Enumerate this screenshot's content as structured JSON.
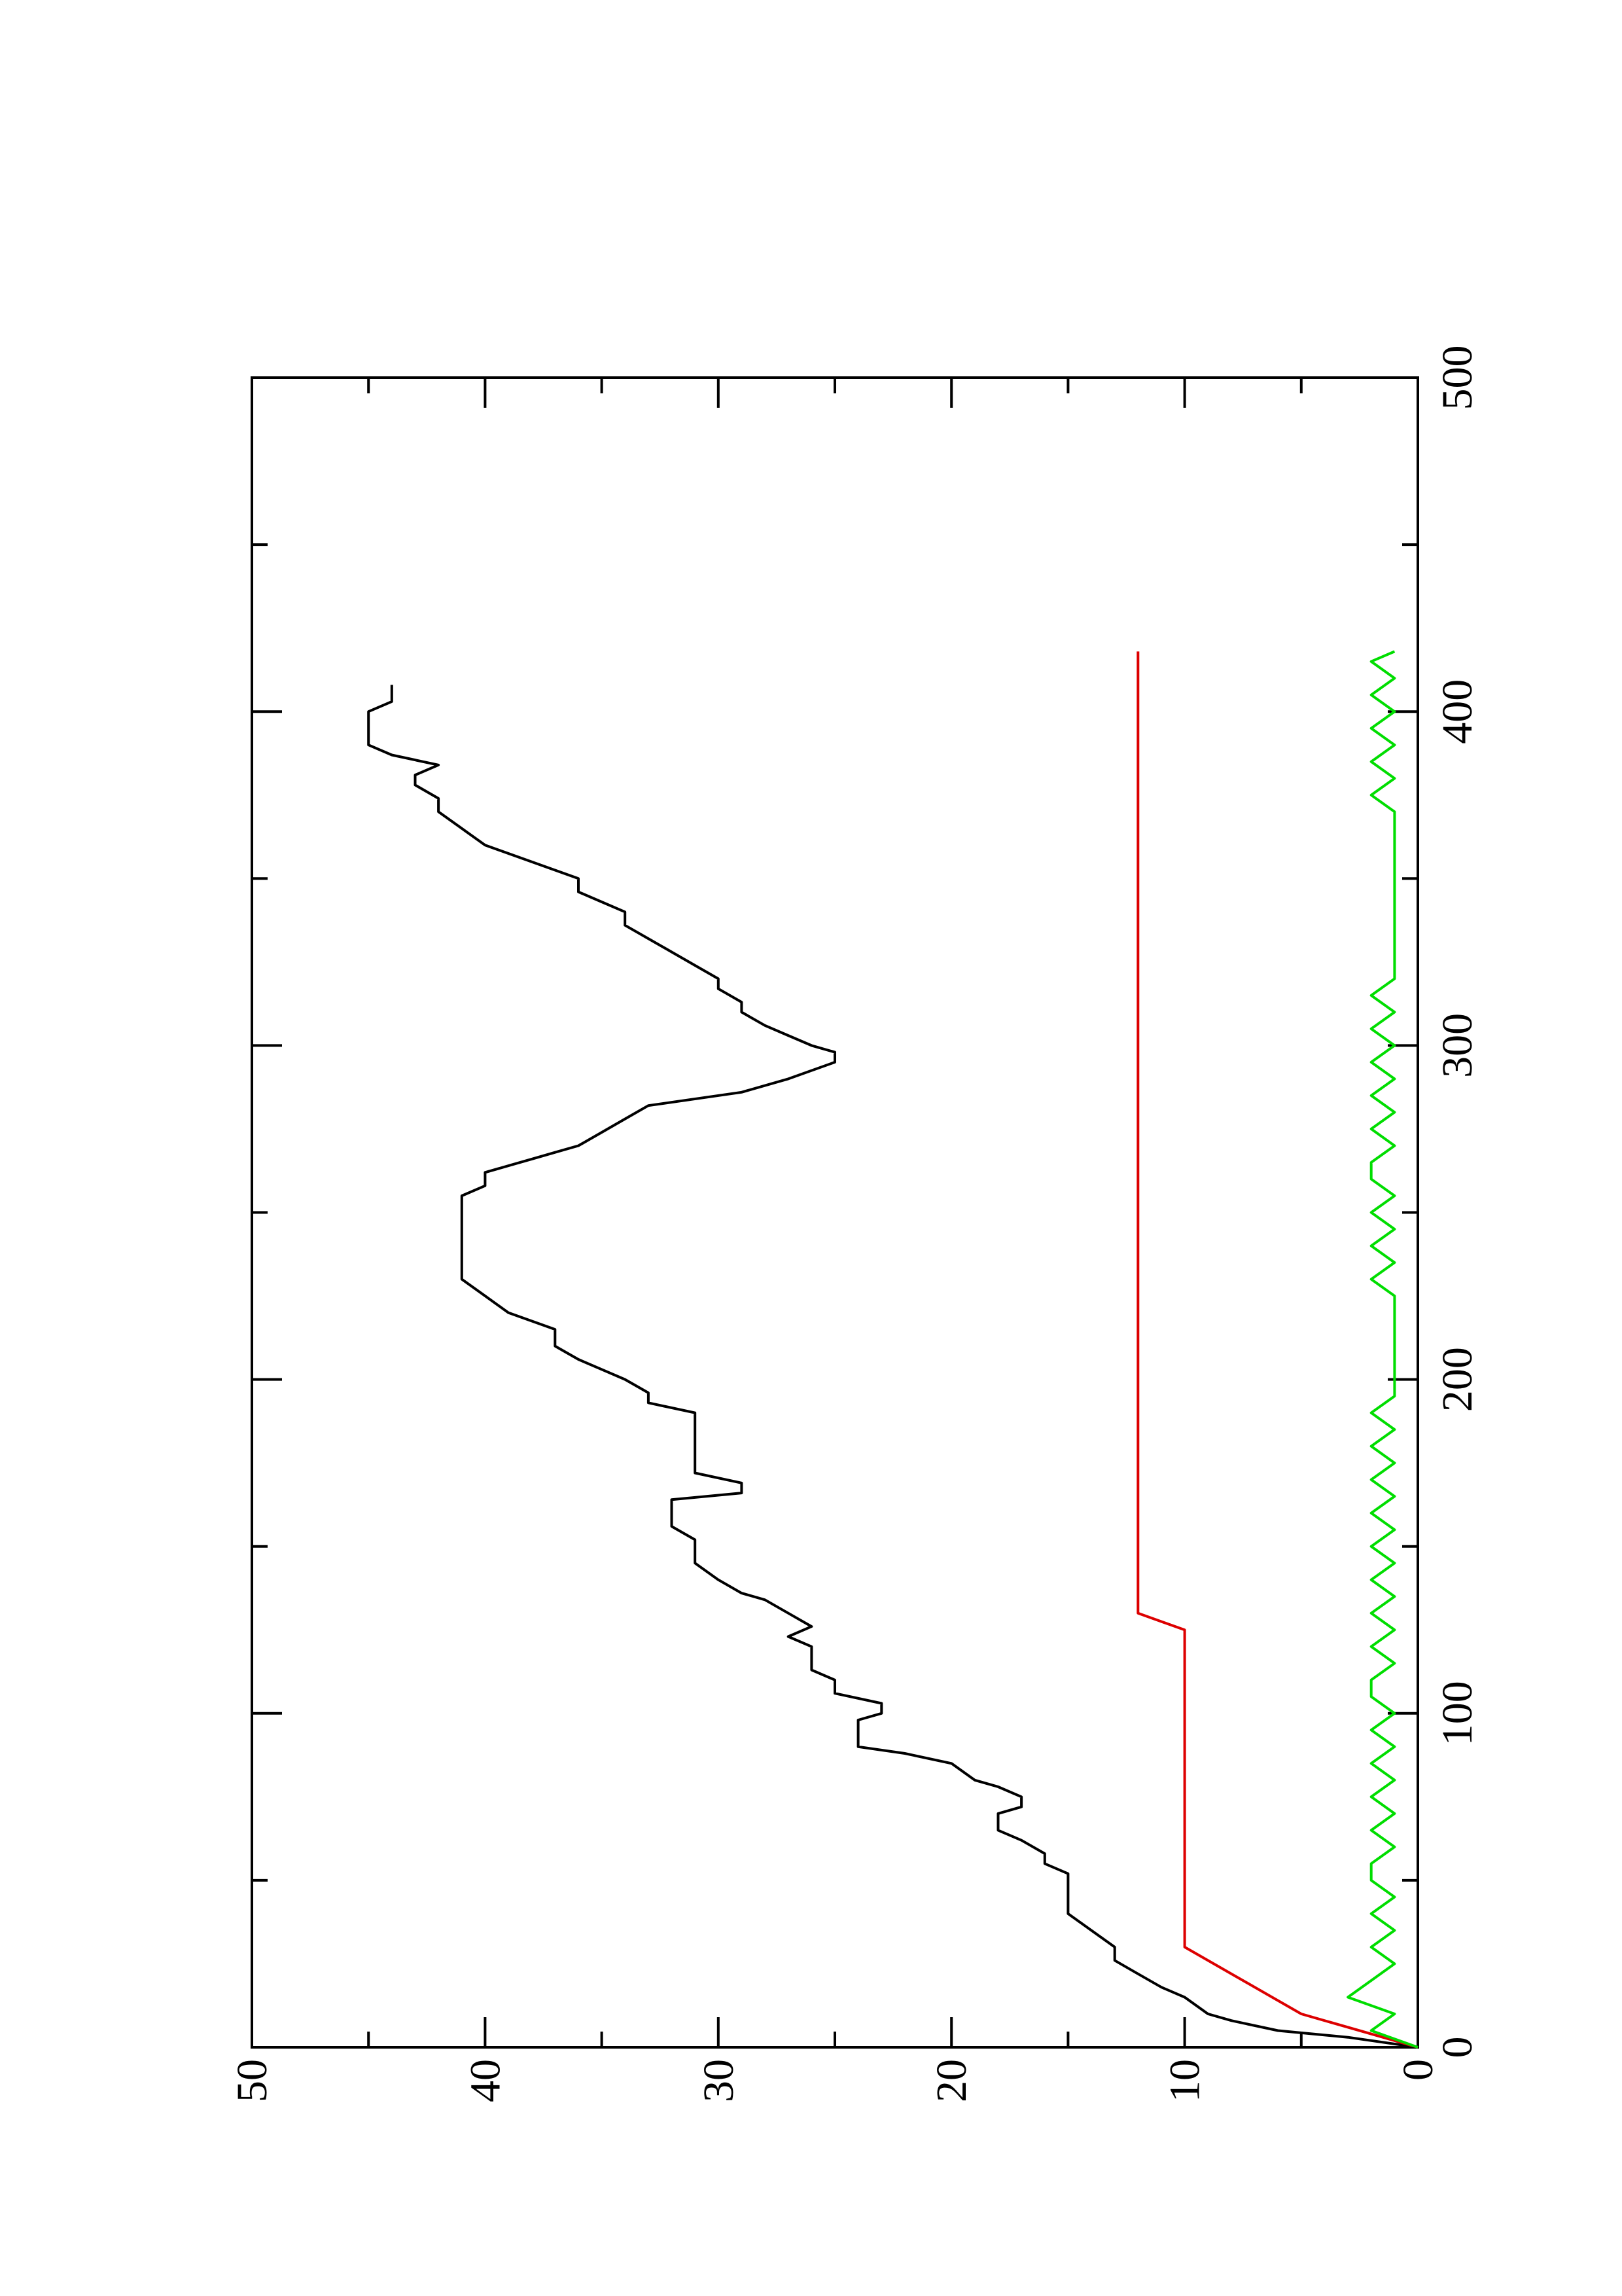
{
  "chart_data": {
    "type": "line",
    "orientation": "rotated-90-ccw",
    "title": "",
    "xlabel": "",
    "ylabel": "",
    "xlim": [
      0,
      500
    ],
    "ylim": [
      0,
      50
    ],
    "x_ticks": [
      "0",
      "100",
      "200",
      "300",
      "400",
      "500"
    ],
    "y_ticks": [
      "0",
      "10",
      "20",
      "30",
      "40",
      "50"
    ],
    "grid": false,
    "legend": "none",
    "series": [
      {
        "color": "#000000",
        "points": [
          [
            0,
            0
          ],
          [
            3,
            3
          ],
          [
            5,
            6
          ],
          [
            8,
            8
          ],
          [
            10,
            9
          ],
          [
            15,
            10
          ],
          [
            18,
            11
          ],
          [
            22,
            12
          ],
          [
            26,
            13
          ],
          [
            30,
            13
          ],
          [
            35,
            14
          ],
          [
            40,
            15
          ],
          [
            44,
            15
          ],
          [
            48,
            15
          ],
          [
            52,
            15
          ],
          [
            55,
            16
          ],
          [
            58,
            16
          ],
          [
            62,
            17
          ],
          [
            65,
            18
          ],
          [
            68,
            18
          ],
          [
            70,
            18
          ],
          [
            72,
            17
          ],
          [
            75,
            17
          ],
          [
            78,
            18
          ],
          [
            80,
            19
          ],
          [
            85,
            20
          ],
          [
            88,
            22
          ],
          [
            90,
            24
          ],
          [
            95,
            24
          ],
          [
            98,
            24
          ],
          [
            100,
            23
          ],
          [
            103,
            23
          ],
          [
            106,
            25
          ],
          [
            110,
            25
          ],
          [
            113,
            26
          ],
          [
            116,
            26
          ],
          [
            120,
            26
          ],
          [
            123,
            27
          ],
          [
            126,
            26
          ],
          [
            130,
            27
          ],
          [
            134,
            28
          ],
          [
            136,
            29
          ],
          [
            140,
            30
          ],
          [
            145,
            31
          ],
          [
            148,
            31
          ],
          [
            152,
            31
          ],
          [
            156,
            32
          ],
          [
            160,
            32
          ],
          [
            164,
            32
          ],
          [
            166,
            29
          ],
          [
            169,
            29
          ],
          [
            172,
            31
          ],
          [
            176,
            31
          ],
          [
            180,
            31
          ],
          [
            185,
            31
          ],
          [
            190,
            31
          ],
          [
            193,
            33
          ],
          [
            196,
            33
          ],
          [
            200,
            34
          ],
          [
            203,
            35
          ],
          [
            206,
            36
          ],
          [
            210,
            37
          ],
          [
            215,
            37
          ],
          [
            220,
            39
          ],
          [
            225,
            40
          ],
          [
            230,
            41
          ],
          [
            235,
            41
          ],
          [
            240,
            41
          ],
          [
            245,
            41
          ],
          [
            250,
            41
          ],
          [
            255,
            41
          ],
          [
            258,
            40
          ],
          [
            262,
            40
          ],
          [
            266,
            38
          ],
          [
            268,
            37
          ],
          [
            270,
            36
          ],
          [
            274,
            35
          ],
          [
            278,
            34
          ],
          [
            282,
            33
          ],
          [
            286,
            29
          ],
          [
            290,
            27
          ],
          [
            295,
            25
          ],
          [
            298,
            25
          ],
          [
            300,
            26
          ],
          [
            303,
            27
          ],
          [
            306,
            28
          ],
          [
            310,
            29
          ],
          [
            313,
            29
          ],
          [
            317,
            30
          ],
          [
            320,
            30
          ],
          [
            324,
            31
          ],
          [
            328,
            32
          ],
          [
            332,
            33
          ],
          [
            336,
            34
          ],
          [
            340,
            34
          ],
          [
            343,
            35
          ],
          [
            346,
            36
          ],
          [
            350,
            36
          ],
          [
            355,
            38
          ],
          [
            360,
            40
          ],
          [
            365,
            41
          ],
          [
            370,
            42
          ],
          [
            374,
            42
          ],
          [
            378,
            43
          ],
          [
            381,
            43
          ],
          [
            384,
            42
          ],
          [
            387,
            44
          ],
          [
            390,
            45
          ],
          [
            393,
            45
          ],
          [
            396,
            45
          ],
          [
            400,
            45
          ],
          [
            403,
            44
          ],
          [
            406,
            44
          ],
          [
            408,
            44
          ]
        ]
      },
      {
        "color": "#dd0000",
        "points": [
          [
            0,
            0
          ],
          [
            10,
            5
          ],
          [
            10,
            5
          ],
          [
            30,
            10
          ],
          [
            30,
            10
          ],
          [
            35,
            10
          ],
          [
            48,
            10
          ],
          [
            60,
            10
          ],
          [
            60,
            10
          ],
          [
            70,
            10
          ],
          [
            70,
            10
          ],
          [
            100,
            10
          ],
          [
            100,
            10
          ],
          [
            115,
            10
          ],
          [
            118,
            10
          ],
          [
            123,
            10
          ],
          [
            125,
            10
          ],
          [
            130,
            12
          ],
          [
            135,
            12
          ],
          [
            140,
            12
          ],
          [
            145,
            12
          ],
          [
            150,
            12
          ],
          [
            155,
            12
          ],
          [
            160,
            12
          ],
          [
            165,
            12
          ],
          [
            170,
            12
          ],
          [
            175,
            12
          ],
          [
            180,
            12
          ],
          [
            185,
            12
          ],
          [
            190,
            12
          ],
          [
            195,
            12
          ],
          [
            200,
            12
          ],
          [
            205,
            12
          ],
          [
            210,
            12
          ],
          [
            215,
            12
          ],
          [
            220,
            12
          ],
          [
            225,
            12
          ],
          [
            230,
            12
          ],
          [
            235,
            12
          ],
          [
            240,
            12
          ],
          [
            245,
            12
          ],
          [
            250,
            12
          ],
          [
            255,
            12
          ],
          [
            260,
            12
          ],
          [
            265,
            12
          ],
          [
            270,
            12
          ],
          [
            275,
            12
          ],
          [
            280,
            12
          ],
          [
            285,
            12
          ],
          [
            290,
            12
          ],
          [
            295,
            12
          ],
          [
            300,
            12
          ],
          [
            305,
            12
          ],
          [
            310,
            12
          ],
          [
            315,
            12
          ],
          [
            320,
            12
          ],
          [
            325,
            12
          ],
          [
            330,
            12
          ],
          [
            335,
            12
          ],
          [
            340,
            12
          ],
          [
            345,
            12
          ],
          [
            350,
            12
          ],
          [
            355,
            12
          ],
          [
            360,
            12
          ],
          [
            365,
            12
          ],
          [
            370,
            12
          ],
          [
            375,
            12
          ],
          [
            380,
            12
          ],
          [
            385,
            12
          ],
          [
            390,
            12
          ],
          [
            395,
            12
          ],
          [
            400,
            12
          ],
          [
            405,
            12
          ],
          [
            410,
            12
          ],
          [
            415,
            12
          ],
          [
            418,
            12
          ]
        ]
      },
      {
        "color": "#00dd00",
        "points": [
          [
            0,
            0
          ],
          [
            5,
            2
          ],
          [
            10,
            1
          ],
          [
            15,
            3
          ],
          [
            20,
            2
          ],
          [
            25,
            1
          ],
          [
            30,
            2
          ],
          [
            35,
            1
          ],
          [
            40,
            2
          ],
          [
            45,
            1
          ],
          [
            50,
            2
          ],
          [
            55,
            2
          ],
          [
            60,
            1
          ],
          [
            65,
            2
          ],
          [
            70,
            1
          ],
          [
            75,
            2
          ],
          [
            80,
            1
          ],
          [
            85,
            2
          ],
          [
            90,
            1
          ],
          [
            95,
            2
          ],
          [
            100,
            1
          ],
          [
            105,
            2
          ],
          [
            110,
            2
          ],
          [
            115,
            1
          ],
          [
            120,
            2
          ],
          [
            125,
            1
          ],
          [
            130,
            2
          ],
          [
            135,
            1
          ],
          [
            140,
            2
          ],
          [
            145,
            1
          ],
          [
            150,
            2
          ],
          [
            155,
            1
          ],
          [
            160,
            2
          ],
          [
            165,
            1
          ],
          [
            170,
            2
          ],
          [
            175,
            1
          ],
          [
            180,
            2
          ],
          [
            185,
            1
          ],
          [
            190,
            2
          ],
          [
            195,
            1
          ],
          [
            200,
            1
          ],
          [
            205,
            1
          ],
          [
            210,
            1
          ],
          [
            215,
            1
          ],
          [
            220,
            1
          ],
          [
            225,
            1
          ],
          [
            230,
            2
          ],
          [
            235,
            1
          ],
          [
            240,
            2
          ],
          [
            245,
            1
          ],
          [
            250,
            2
          ],
          [
            255,
            1
          ],
          [
            260,
            2
          ],
          [
            265,
            2
          ],
          [
            270,
            1
          ],
          [
            275,
            2
          ],
          [
            280,
            1
          ],
          [
            285,
            2
          ],
          [
            290,
            1
          ],
          [
            295,
            2
          ],
          [
            300,
            1
          ],
          [
            305,
            2
          ],
          [
            310,
            1
          ],
          [
            315,
            2
          ],
          [
            320,
            1
          ],
          [
            325,
            1
          ],
          [
            330,
            1
          ],
          [
            335,
            1
          ],
          [
            340,
            1
          ],
          [
            345,
            1
          ],
          [
            350,
            1
          ],
          [
            355,
            1
          ],
          [
            360,
            1
          ],
          [
            365,
            1
          ],
          [
            370,
            1
          ],
          [
            375,
            2
          ],
          [
            380,
            1
          ],
          [
            385,
            2
          ],
          [
            390,
            1
          ],
          [
            395,
            2
          ],
          [
            400,
            1
          ],
          [
            405,
            2
          ],
          [
            410,
            1
          ],
          [
            415,
            2
          ],
          [
            418,
            1
          ]
        ]
      }
    ]
  }
}
